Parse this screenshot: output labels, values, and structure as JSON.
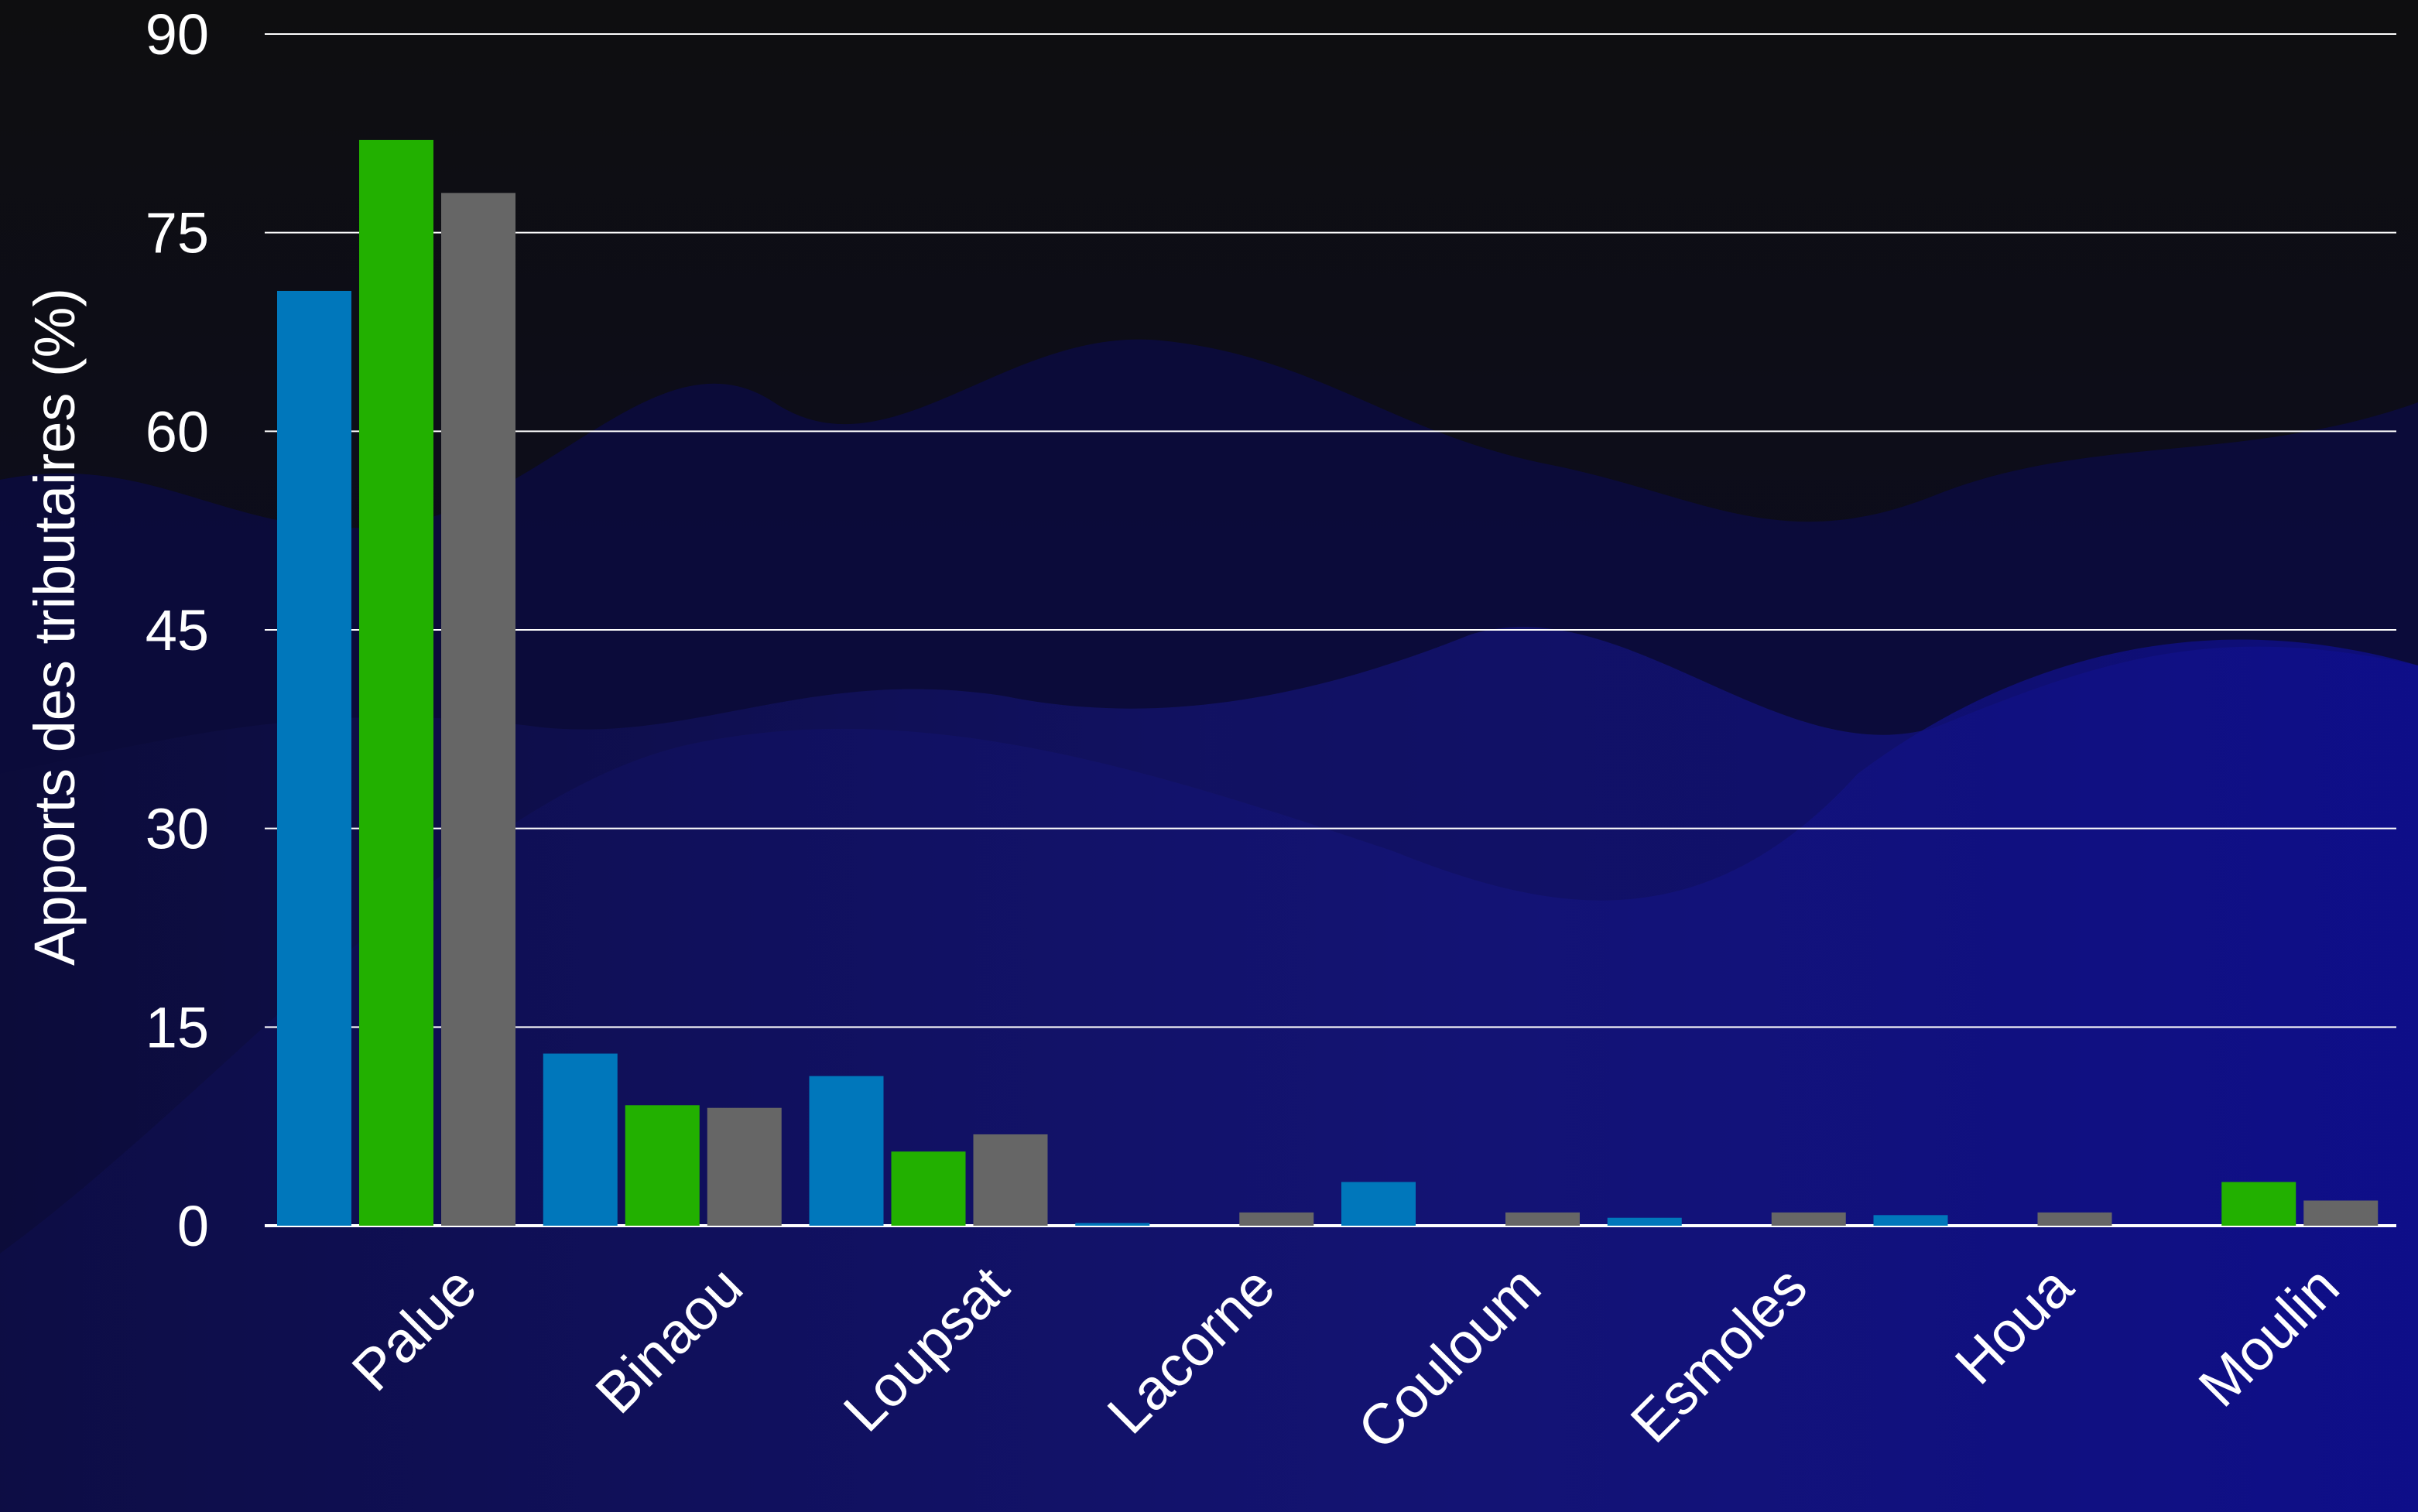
{
  "chart_data": {
    "type": "bar",
    "title": "",
    "xlabel": "",
    "ylabel": "Apports des tributaires (%)",
    "ylim": [
      0,
      90
    ],
    "yticks": [
      0,
      15,
      30,
      45,
      60,
      75,
      90
    ],
    "grid": "horizontal",
    "legend": "none",
    "categories": [
      "Palue",
      "Binaou",
      "Loupsat",
      "Lacorne",
      "Couloum",
      "Esmoles",
      "Houa",
      "Moulin"
    ],
    "series": [
      {
        "color": "#0077bb",
        "values": [
          70.6,
          13.0,
          11.3,
          0.2,
          3.3,
          0.6,
          0.8,
          0.0
        ]
      },
      {
        "color": "#22b000",
        "values": [
          82.0,
          9.1,
          5.6,
          0.0,
          0.0,
          0.0,
          0.0,
          3.3
        ]
      },
      {
        "color": "#666666",
        "values": [
          78.0,
          8.9,
          6.9,
          1.0,
          1.0,
          1.0,
          1.0,
          1.9
        ]
      }
    ]
  },
  "background": {
    "top_color": "#0d0d10",
    "wave_color": "#10106a"
  }
}
